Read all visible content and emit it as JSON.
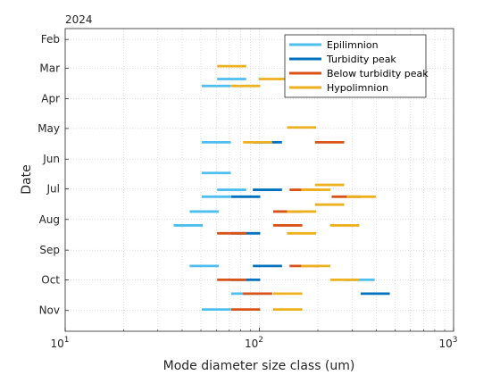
{
  "chart_data": {
    "type": "scatter",
    "title": "",
    "date_axis_label": "2024",
    "xlabel": "Mode diameter size class (um)",
    "ylabel": "Date",
    "xscale": "log",
    "xlim": [
      10,
      1000
    ],
    "x_ticks": [
      {
        "value": 10,
        "base": "10",
        "exp": "1"
      },
      {
        "value": 100,
        "base": "10",
        "exp": "2"
      },
      {
        "value": 1000,
        "base": "10",
        "exp": "3"
      }
    ],
    "ylim": [
      "2024-01-21",
      "2024-11-22"
    ],
    "y_ticks": [
      {
        "date": "2024-02-01",
        "label": "Feb"
      },
      {
        "date": "2024-03-01",
        "label": "Mar"
      },
      {
        "date": "2024-04-01",
        "label": "Apr"
      },
      {
        "date": "2024-05-01",
        "label": "May"
      },
      {
        "date": "2024-06-01",
        "label": "Jun"
      },
      {
        "date": "2024-07-01",
        "label": "Jul"
      },
      {
        "date": "2024-08-01",
        "label": "Aug"
      },
      {
        "date": "2024-09-01",
        "label": "Sep"
      },
      {
        "date": "2024-10-01",
        "label": "Oct"
      },
      {
        "date": "2024-11-01",
        "label": "Nov"
      }
    ],
    "grid": true,
    "legend_position": "top-right",
    "series": [
      {
        "name": "Epilimnion",
        "color": "#4DBEEE",
        "points": [
          {
            "date": "2024-03-12",
            "x": 72
          },
          {
            "date": "2024-03-19",
            "x": 60
          },
          {
            "date": "2024-05-15",
            "x": 60
          },
          {
            "date": "2024-06-15",
            "x": 60
          },
          {
            "date": "2024-07-02",
            "x": 72
          },
          {
            "date": "2024-07-09",
            "x": 60
          },
          {
            "date": "2024-07-24",
            "x": 52
          },
          {
            "date": "2024-08-07",
            "x": 43
          },
          {
            "date": "2024-09-17",
            "x": 52
          },
          {
            "date": "2024-10-15",
            "x": 85
          },
          {
            "date": "2024-10-31",
            "x": 60
          },
          {
            "date": "2024-10-01",
            "x": 330
          }
        ]
      },
      {
        "name": "Turbidity peak",
        "color": "#0072BD",
        "points": [
          {
            "date": "2024-05-15",
            "x": 110
          },
          {
            "date": "2024-07-02",
            "x": 110
          },
          {
            "date": "2024-07-09",
            "x": 85
          },
          {
            "date": "2024-08-15",
            "x": 85
          },
          {
            "date": "2024-09-17",
            "x": 110
          },
          {
            "date": "2024-10-01",
            "x": 85
          },
          {
            "date": "2024-10-15",
            "x": 395
          }
        ]
      },
      {
        "name": "Below turbidity peak",
        "color": "#D95319",
        "points": [
          {
            "date": "2024-05-15",
            "x": 230
          },
          {
            "date": "2024-07-02",
            "x": 170
          },
          {
            "date": "2024-07-09",
            "x": 280
          },
          {
            "date": "2024-07-24",
            "x": 140
          },
          {
            "date": "2024-08-07",
            "x": 140
          },
          {
            "date": "2024-08-15",
            "x": 72
          },
          {
            "date": "2024-09-17",
            "x": 170
          },
          {
            "date": "2024-10-01",
            "x": 72
          },
          {
            "date": "2024-10-15",
            "x": 98
          },
          {
            "date": "2024-10-31",
            "x": 85
          }
        ]
      },
      {
        "name": "Hypolimnion",
        "color": "#EDB120",
        "points": [
          {
            "date": "2024-02-28",
            "x": 72
          },
          {
            "date": "2024-03-12",
            "x": 118
          },
          {
            "date": "2024-03-19",
            "x": 85
          },
          {
            "date": "2024-04-30",
            "x": 165
          },
          {
            "date": "2024-05-15",
            "x": 98
          },
          {
            "date": "2024-06-27",
            "x": 230
          },
          {
            "date": "2024-07-02",
            "x": 195
          },
          {
            "date": "2024-07-09",
            "x": 335
          },
          {
            "date": "2024-07-17",
            "x": 230
          },
          {
            "date": "2024-07-24",
            "x": 165
          },
          {
            "date": "2024-08-07",
            "x": 275
          },
          {
            "date": "2024-08-15",
            "x": 165
          },
          {
            "date": "2024-09-17",
            "x": 195
          },
          {
            "date": "2024-10-01",
            "x": 275
          },
          {
            "date": "2024-10-15",
            "x": 140
          },
          {
            "date": "2024-10-31",
            "x": 140
          }
        ]
      }
    ]
  }
}
